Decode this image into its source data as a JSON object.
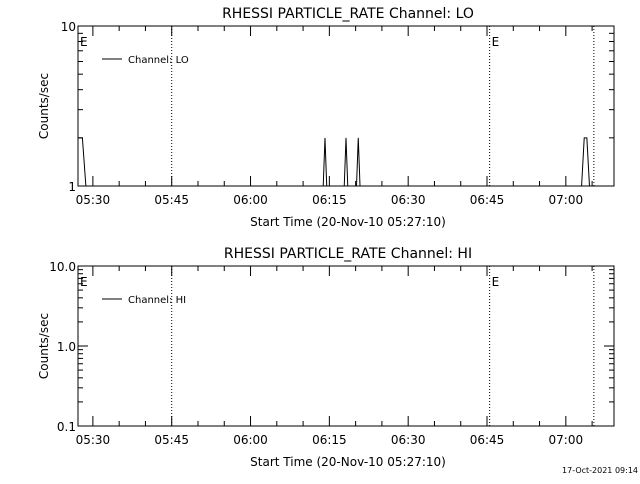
{
  "footer": {
    "timestamp": "17-Oct-2021 09:14"
  },
  "colors": {
    "foreground": "#000000",
    "background": "#ffffff"
  },
  "chart_data": [
    {
      "type": "line",
      "title": "RHESSI PARTICLE_RATE Channel: LO",
      "xlabel": "Start Time (20-Nov-10 05:27:10)",
      "ylabel": "Counts/sec",
      "x_ticks": [
        "05:30",
        "05:45",
        "06:00",
        "06:15",
        "06:30",
        "06:45",
        "07:00"
      ],
      "y_scale": "log",
      "ylim": [
        1,
        10
      ],
      "y_ticks": [
        "1",
        "10"
      ],
      "xlim": [
        "05:27:10",
        "07:09:10"
      ],
      "legend": {
        "position": "top-left",
        "entries": [
          "Channel: LO"
        ]
      },
      "vlines": [
        {
          "time": "05:45:00",
          "label": ""
        },
        {
          "time": "06:45:30",
          "label": ""
        },
        {
          "time": "07:05:20",
          "label": ""
        }
      ],
      "event_markers": [
        {
          "time": "05:27:10",
          "label": "E"
        },
        {
          "time": "06:45:30",
          "label": "E"
        }
      ],
      "series": [
        {
          "name": "Channel: LO",
          "points": [
            [
              "05:27:10",
              2
            ],
            [
              "05:28:00",
              2
            ],
            [
              "05:28:40",
              1
            ],
            [
              "06:13:50",
              1
            ],
            [
              "06:14:10",
              2
            ],
            [
              "06:14:30",
              1
            ],
            [
              "06:17:50",
              1
            ],
            [
              "06:18:10",
              2
            ],
            [
              "06:18:30",
              1
            ],
            [
              "06:20:10",
              1
            ],
            [
              "06:20:30",
              2
            ],
            [
              "06:20:50",
              1
            ],
            [
              "07:03:00",
              1
            ],
            [
              "07:03:30",
              2
            ],
            [
              "07:04:00",
              2
            ],
            [
              "07:04:30",
              1
            ]
          ]
        }
      ]
    },
    {
      "type": "line",
      "title": "RHESSI PARTICLE_RATE Channel: HI",
      "xlabel": "Start Time (20-Nov-10 05:27:10)",
      "ylabel": "Counts/sec",
      "x_ticks": [
        "05:30",
        "05:45",
        "06:00",
        "06:15",
        "06:30",
        "06:45",
        "07:00"
      ],
      "y_scale": "log",
      "ylim": [
        0.1,
        10
      ],
      "y_ticks": [
        "0.1",
        "1.0",
        "10.0"
      ],
      "xlim": [
        "05:27:10",
        "07:09:10"
      ],
      "legend": {
        "position": "top-left",
        "entries": [
          "Channel: HI"
        ]
      },
      "vlines": [
        {
          "time": "05:45:00",
          "label": ""
        },
        {
          "time": "06:45:30",
          "label": ""
        },
        {
          "time": "07:05:20",
          "label": ""
        }
      ],
      "event_markers": [
        {
          "time": "05:27:10",
          "label": "E"
        },
        {
          "time": "06:45:30",
          "label": "E"
        }
      ],
      "series": [
        {
          "name": "Channel: HI",
          "points": []
        }
      ]
    }
  ]
}
